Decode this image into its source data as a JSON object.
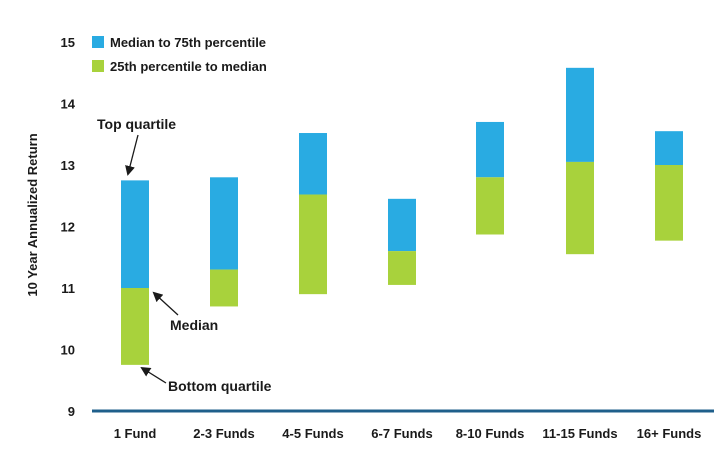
{
  "chart_data": {
    "type": "bar",
    "subtype": "floating-stacked",
    "ylabel": "10 Year Annualized Return",
    "ylim": [
      9,
      15
    ],
    "yticks": [
      9,
      10,
      11,
      12,
      13,
      14,
      15
    ],
    "categories": [
      "1 Fund",
      "2-3 Funds",
      "4-5 Funds",
      "6-7 Funds",
      "8-10 Funds",
      "11-15 Funds",
      "16+ Funds"
    ],
    "series": [
      {
        "name": "Median to 75th percentile",
        "color": "#29abe2",
        "low": [
          11.0,
          11.3,
          12.52,
          11.6,
          12.8,
          13.05,
          13.0
        ],
        "high": [
          12.75,
          12.8,
          13.52,
          12.45,
          13.7,
          14.58,
          13.55
        ]
      },
      {
        "name": "25th percentile to median",
        "color": "#a8d23c",
        "low": [
          9.75,
          10.7,
          10.9,
          11.05,
          11.87,
          11.55,
          11.77
        ],
        "high": [
          11.0,
          11.3,
          12.52,
          11.6,
          12.8,
          13.05,
          13.0
        ]
      }
    ],
    "legend_position": "top-left",
    "grid": false,
    "baseline_color": "#1f5f8b",
    "annotations": [
      {
        "text": "Top quartile",
        "category_index": 0,
        "y": 12.75
      },
      {
        "text": "Median",
        "category_index": 0,
        "y": 11.0
      },
      {
        "text": "Bottom quartile",
        "category_index": 0,
        "y": 9.75
      }
    ]
  }
}
